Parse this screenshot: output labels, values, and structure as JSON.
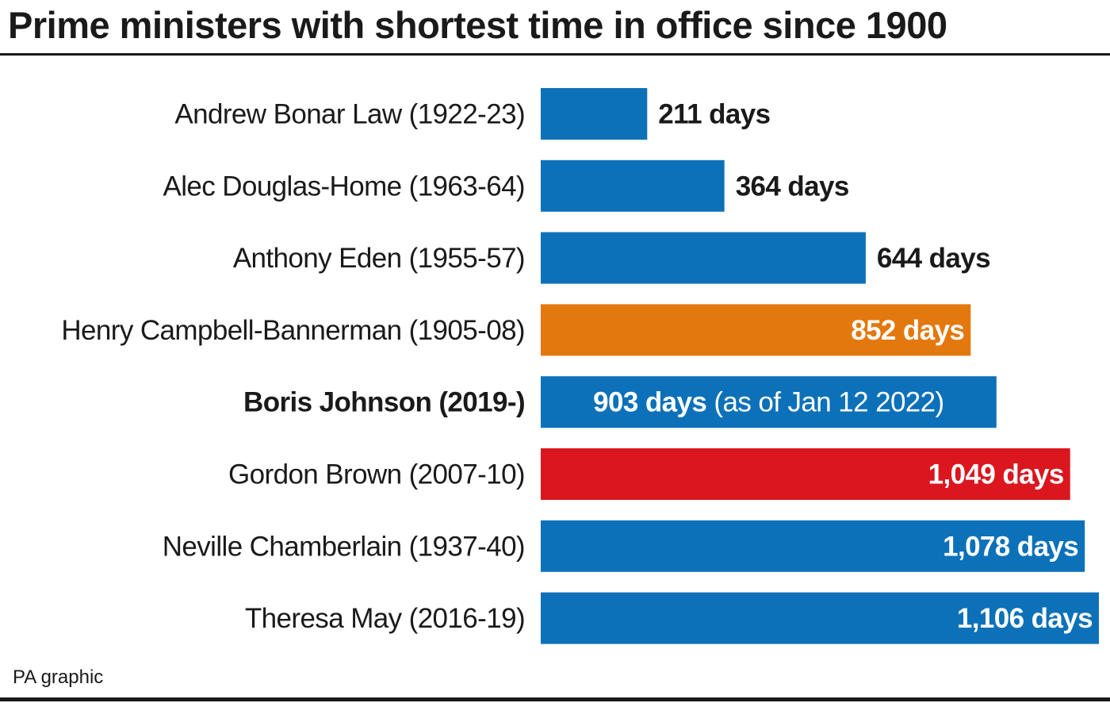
{
  "header": {
    "title": "Prime ministers with shortest time in office since 1900"
  },
  "footer": {
    "source": "PA graphic"
  },
  "chart_data": {
    "type": "bar",
    "orientation": "horizontal",
    "title": "Prime ministers with shortest time in office since 1900",
    "xlabel": "",
    "ylabel": "",
    "xlim": [
      0,
      1106
    ],
    "grid": false,
    "categories": [
      "Andrew Bonar Law (1922-23)",
      "Alec Douglas-Home (1963-64)",
      "Anthony Eden (1955-57)",
      "Henry Campbell-Bannerman (1905-08)",
      "Boris Johnson (2019-)",
      "Gordon Brown (2007-10)",
      "Neville Chamberlain (1937-40)",
      "Theresa May (2016-19)"
    ],
    "values": [
      211,
      364,
      644,
      852,
      903,
      1049,
      1078,
      1106
    ],
    "data_labels": [
      "211 days",
      "364 days",
      "644 days",
      "852 days",
      "903 days",
      "1,049 days",
      "1,078 days",
      "1,106 days"
    ],
    "label_notes": [
      "",
      "",
      "",
      "",
      "(as of Jan 12 2022)",
      "",
      "",
      ""
    ],
    "colors": [
      "#0d71b9",
      "#0d71b9",
      "#0d71b9",
      "#e3780e",
      "#0d71b9",
      "#db161e",
      "#0d71b9",
      "#0d71b9"
    ],
    "bold_categories": [
      false,
      false,
      false,
      false,
      true,
      false,
      false,
      false
    ],
    "label_inside": [
      false,
      false,
      false,
      true,
      true,
      true,
      true,
      true
    ]
  }
}
